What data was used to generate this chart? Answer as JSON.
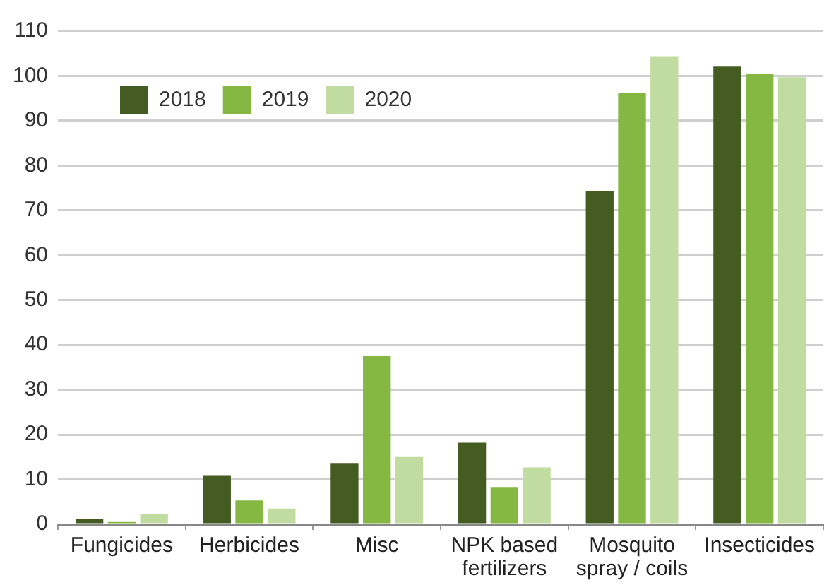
{
  "chart_data": {
    "type": "bar",
    "categories": [
      "Fungicides",
      "Herbicides",
      "Misc",
      "NPK based fertilizers",
      "Mosquito spray / coils",
      "Insecticides"
    ],
    "series": [
      {
        "name": "2018",
        "color": "#445c22",
        "values": [
          1.2,
          10.8,
          13.5,
          18.2,
          74.3,
          102.1
        ]
      },
      {
        "name": "2019",
        "color": "#84b842",
        "values": [
          0.5,
          5.3,
          37.5,
          8.3,
          96.2,
          100.4
        ]
      },
      {
        "name": "2020",
        "color": "#c1dca0",
        "values": [
          2.2,
          3.5,
          15,
          12.7,
          104.4,
          99.7
        ]
      }
    ],
    "ylim": [
      0,
      110
    ],
    "yticks": [
      0,
      10,
      20,
      30,
      40,
      50,
      60,
      70,
      80,
      90,
      100,
      110
    ],
    "grid": "y",
    "legend": "top left"
  }
}
